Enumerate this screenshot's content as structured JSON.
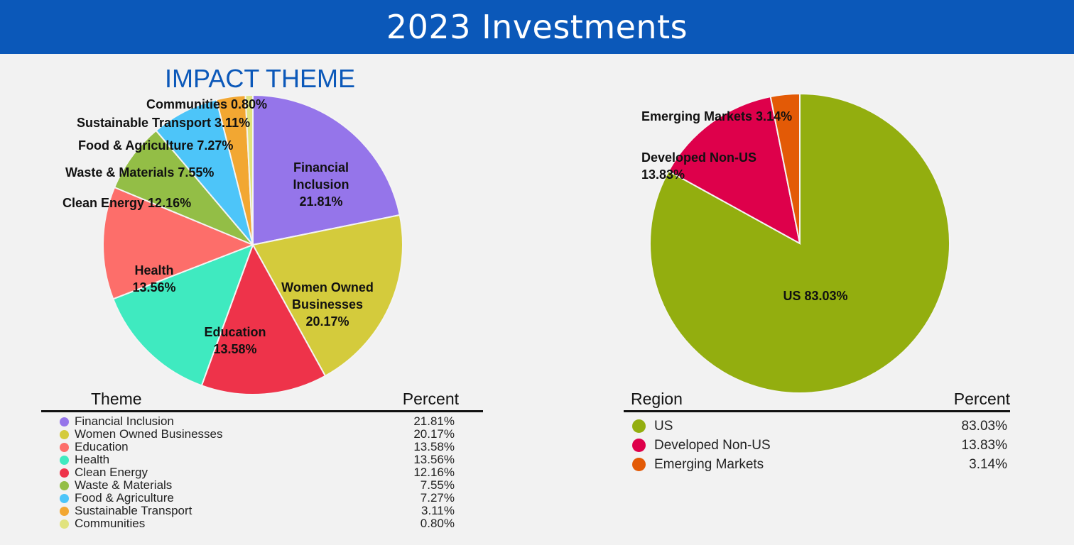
{
  "header": {
    "title": "2023 Investments"
  },
  "chart_data": [
    {
      "type": "pie",
      "title": "IMPACT THEME",
      "categories": [
        "Financial Inclusion",
        "Women Owned Businesses",
        "Education",
        "Health",
        "Clean Energy",
        "Waste & Materials",
        "Food & Agriculture",
        "Sustainable Transport",
        "Communities"
      ],
      "values": [
        21.81,
        20.17,
        13.58,
        13.56,
        12.16,
        7.55,
        7.27,
        3.11,
        0.8
      ],
      "value_labels": [
        "21.81%",
        "20.17%",
        "13.58%",
        "13.56%",
        "12.16%",
        "7.55%",
        "7.27%",
        "3.11%",
        "0.80%"
      ],
      "colors": [
        "#9575ea",
        "#d4cb3c",
        "#ee334a",
        "#3feac0",
        "#fd6e6a",
        "#93be46",
        "#4dc5f9",
        "#f2a732",
        "#e1e37e"
      ],
      "slice_labels": [
        {
          "lines": [
            "Financial",
            "Inclusion",
            "21.81%"
          ]
        },
        {
          "lines": [
            "Women Owned",
            "Businesses",
            "20.17%"
          ]
        },
        {
          "lines": [
            "Education",
            "13.58%"
          ]
        },
        {
          "lines": [
            "Health",
            "13.56%"
          ]
        },
        {
          "lines": [
            "Clean Energy 12.16%"
          ]
        },
        {
          "lines": [
            "Waste & Materials 7.55%"
          ]
        },
        {
          "lines": [
            "Food & Agriculture 7.27%"
          ]
        },
        {
          "lines": [
            "Sustainable Transport 3.11%"
          ]
        },
        {
          "lines": [
            "Communities 0.80%"
          ]
        }
      ],
      "table": {
        "col1": "Theme",
        "col2": "Percent"
      },
      "legend_colors": [
        "#9575ea",
        "#d4cb3c",
        "#fd6e6a",
        "#3feac0",
        "#ee334a",
        "#93be46",
        "#4dc5f9",
        "#f2a732",
        "#e1e37e"
      ]
    },
    {
      "type": "pie",
      "title": "",
      "categories": [
        "US",
        "Developed Non-US",
        "Emerging Markets"
      ],
      "values": [
        83.03,
        13.83,
        3.14
      ],
      "value_labels": [
        "83.03%",
        "13.83%",
        "3.14%"
      ],
      "colors": [
        "#93ae0f",
        "#de004b",
        "#e35a06"
      ],
      "slice_labels": [
        {
          "lines": [
            "US 83.03%"
          ]
        },
        {
          "lines": [
            "Developed Non-US",
            "13.83%"
          ]
        },
        {
          "lines": [
            "Emerging Markets 3.14%"
          ]
        }
      ],
      "table": {
        "col1": "Region",
        "col2": "Percent"
      },
      "legend_colors": [
        "#93ae0f",
        "#de004b",
        "#e35a06"
      ]
    }
  ]
}
